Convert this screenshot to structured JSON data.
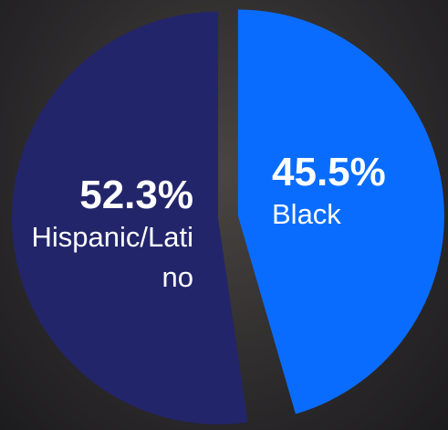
{
  "chart_data": {
    "type": "pie",
    "categories": [
      "Hispanic/Latino",
      "Black"
    ],
    "values": [
      52.3,
      45.5
    ],
    "value_labels": [
      "52.3%",
      "45.5%"
    ],
    "colors": [
      "#23256a",
      "#0a6cff"
    ]
  }
}
